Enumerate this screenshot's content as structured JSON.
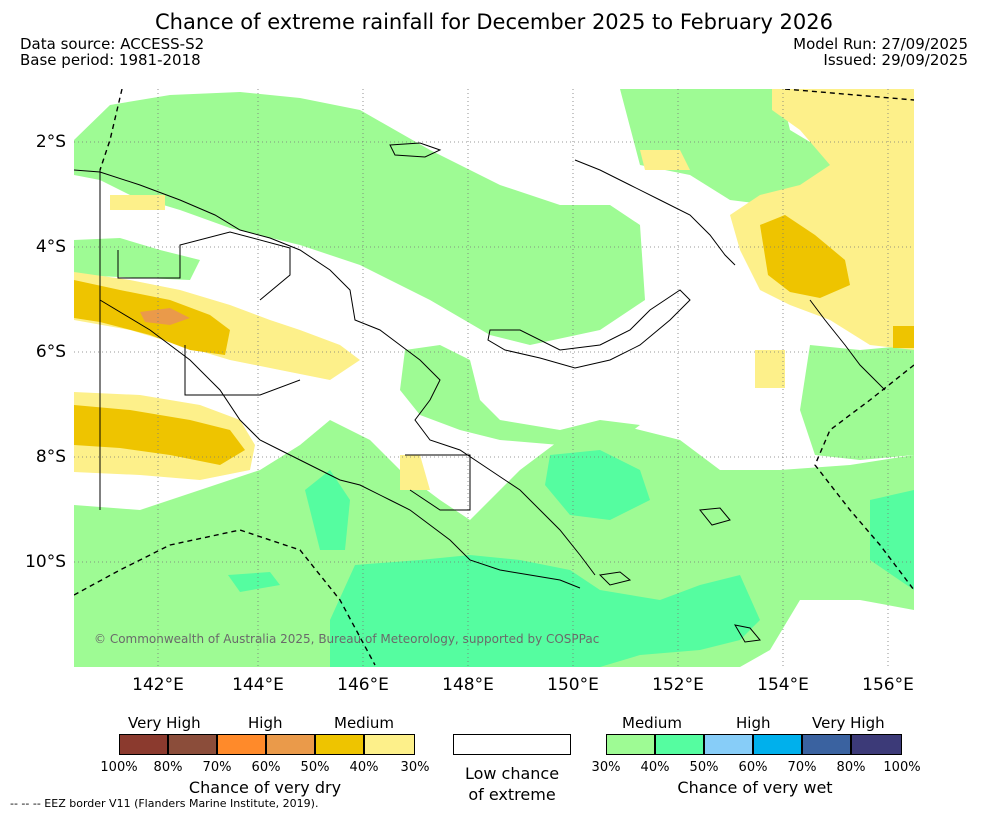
{
  "title": "Chance of extreme rainfall for December 2025 to February 2026",
  "data_source": "Data source: ACCESS-S2",
  "base_period": "Base period: 1981-2018",
  "model_run": "Model Run: 27/09/2025",
  "issued": "Issued: 29/09/2025",
  "y_axis_labels": [
    "2°S",
    "4°S",
    "6°S",
    "8°S",
    "10°S"
  ],
  "x_axis_labels": [
    "142°E",
    "144°E",
    "146°E",
    "148°E",
    "150°E",
    "152°E",
    "154°E",
    "156°E"
  ],
  "copyright": "© Commonwealth of Australia 2025, Bureau of Meteorology, supported by COSPPac",
  "legend": {
    "dry": {
      "levels": [
        "Very High",
        "High",
        "Medium"
      ],
      "colors": [
        "#8b3a2e",
        "#8b4d3a",
        "#ff8a2a",
        "#ea9a4a",
        "#eec400",
        "#fdf08a"
      ],
      "ticks": [
        "100%",
        "80%",
        "70%",
        "60%",
        "50%",
        "40%",
        "30%"
      ],
      "name": "Chance of very dry"
    },
    "low": {
      "line1": "Low chance",
      "line2": "of extreme"
    },
    "wet": {
      "levels": [
        "Medium",
        "High",
        "Very High"
      ],
      "colors": [
        "#9efb94",
        "#55fda0",
        "#87cdf8",
        "#00b0ec",
        "#3a62a0",
        "#3c3a78"
      ],
      "ticks": [
        "30%",
        "40%",
        "50%",
        "60%",
        "70%",
        "80%",
        "100%"
      ],
      "name": "Chance of very wet"
    }
  },
  "eez_note": "-- -- -- EEZ border V11 (Flanders Marine Institute, 2019)."
}
